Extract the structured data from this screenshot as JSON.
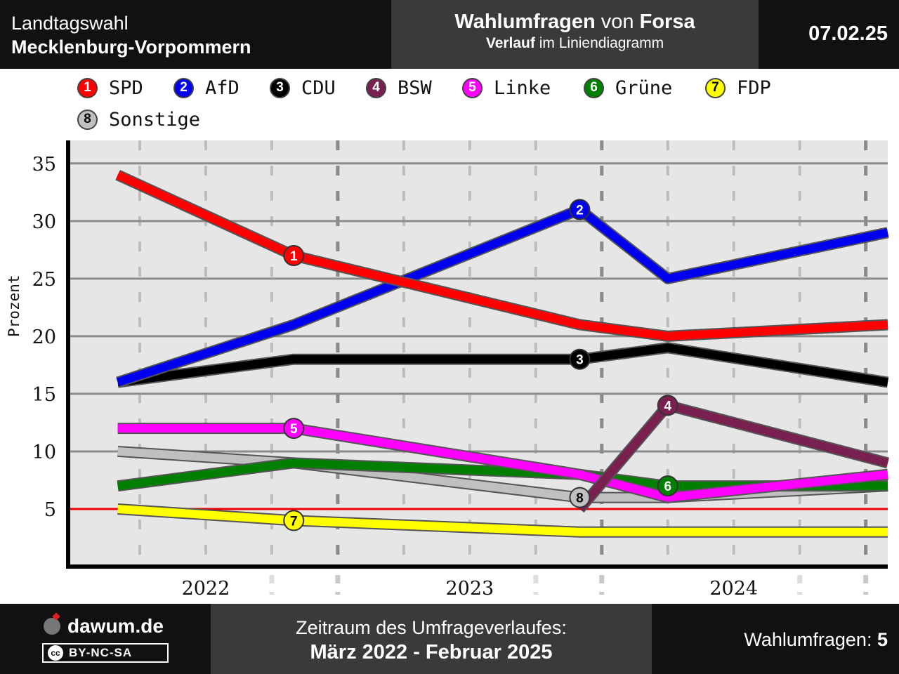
{
  "header": {
    "left_line1": "Landtagswahl",
    "left_line2": "Mecklenburg-Vorpommern",
    "center_bold1": "Wahlumfragen",
    "center_von": " von ",
    "center_bold2": "Forsa",
    "center_sub_bold": "Verlauf",
    "center_sub_rest": " im Liniendiagramm",
    "date": "07.02.25"
  },
  "legend": [
    {
      "num": "1",
      "label": "SPD",
      "color": "#ff0000",
      "text_color": "#ffffff"
    },
    {
      "num": "2",
      "label": "AfD",
      "color": "#0000ee",
      "text_color": "#ffffff"
    },
    {
      "num": "3",
      "label": "CDU",
      "color": "#000000",
      "text_color": "#ffffff"
    },
    {
      "num": "4",
      "label": "BSW",
      "color": "#7a2050",
      "text_color": "#ffffff"
    },
    {
      "num": "5",
      "label": "Linke",
      "color": "#ff00ff",
      "text_color": "#ffffff"
    },
    {
      "num": "6",
      "label": "Grüne",
      "color": "#007f00",
      "text_color": "#ffffff"
    },
    {
      "num": "7",
      "label": "FDP",
      "color": "#ffff00",
      "text_color": "#000000"
    },
    {
      "num": "8",
      "label": "Sonstige",
      "color": "#c0c0c0",
      "text_color": "#000000"
    }
  ],
  "chart_data": {
    "type": "line",
    "title": "",
    "xlabel": "",
    "ylabel": "Prozent",
    "ylim": [
      0,
      37
    ],
    "yticks": [
      5,
      10,
      15,
      20,
      25,
      30,
      35
    ],
    "x_tick_labels": [
      "2022",
      "2023",
      "2024"
    ],
    "grid": true,
    "threshold": 5,
    "poll_dates": [
      "2022-03",
      "2022-11",
      "2023-12",
      "2024-04",
      "2025-02"
    ],
    "series": [
      {
        "name": "SPD",
        "values": [
          34,
          27,
          21,
          20,
          21
        ],
        "color": "#ff0000",
        "marker_index": 1
      },
      {
        "name": "AfD",
        "values": [
          16,
          21,
          31,
          25,
          29
        ],
        "color": "#0000ee",
        "marker_index": 2
      },
      {
        "name": "CDU",
        "values": [
          16,
          18,
          18,
          19,
          16
        ],
        "color": "#000000",
        "marker_index": 2
      },
      {
        "name": "BSW",
        "values": [
          null,
          null,
          5,
          14,
          9
        ],
        "color": "#7a2050",
        "marker_index": 3
      },
      {
        "name": "Linke",
        "values": [
          12,
          12,
          8,
          6,
          8
        ],
        "color": "#ff00ff",
        "marker_index": 1
      },
      {
        "name": "Grüne",
        "values": [
          7,
          9,
          8,
          7,
          7
        ],
        "color": "#007f00",
        "marker_index": 3
      },
      {
        "name": "FDP",
        "values": [
          5,
          4,
          3,
          3,
          3
        ],
        "color": "#ffff00",
        "marker_index": 1
      },
      {
        "name": "Sonstige",
        "values": [
          10,
          9,
          6,
          6,
          7
        ],
        "color": "#c0c0c0",
        "marker_index": 2
      }
    ]
  },
  "footer": {
    "brand": "dawum.de",
    "license": "BY-NC-SA",
    "license_icon": "cc",
    "center_line1": "Zeitraum des Umfrageverlaufes:",
    "center_line2": "März 2022 - Februar 2025",
    "count_label": "Wahlumfragen: ",
    "count_value": "5"
  }
}
